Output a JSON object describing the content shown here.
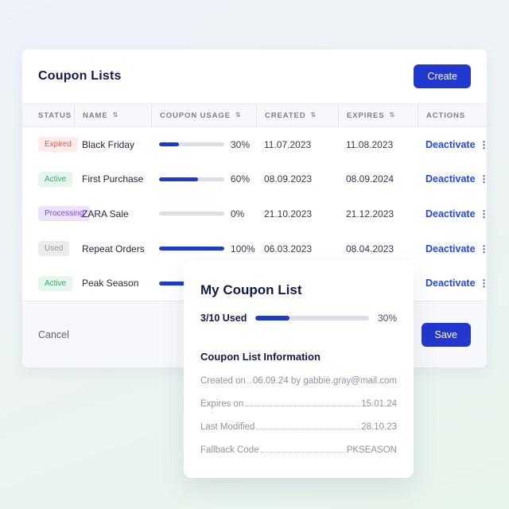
{
  "coupon_lists": {
    "title": "Coupon Lists",
    "create_button": "Create",
    "table": {
      "columns": [
        {
          "label": "STATUS",
          "sortable": false
        },
        {
          "label": "NAME",
          "sortable": true
        },
        {
          "label": "COUPON USAGE",
          "sortable": true
        },
        {
          "label": "CREATED",
          "sortable": true
        },
        {
          "label": "EXPIRES",
          "sortable": true
        },
        {
          "label": "ACTIONS",
          "sortable": false
        }
      ],
      "rows": [
        {
          "status": "Expired",
          "name": "Black Friday",
          "usage_pct": 30,
          "usage_label": "30%",
          "created": "11.07.2023",
          "expires": "11.08.2023",
          "action": "Deactivate"
        },
        {
          "status": "Active",
          "name": "First Purchase",
          "usage_pct": 60,
          "usage_label": "60%",
          "created": "08.09.2023",
          "expires": "08.09.2024",
          "action": "Deactivate"
        },
        {
          "status": "Processing",
          "name": "ZARA Sale",
          "usage_pct": 0,
          "usage_label": "0%",
          "created": "21.10.2023",
          "expires": "21.12.2023",
          "action": "Deactivate"
        },
        {
          "status": "Used",
          "name": "Repeat Orders",
          "usage_pct": 100,
          "usage_label": "100%",
          "created": "06.03.2023",
          "expires": "08.04.2023",
          "action": "Deactivate"
        },
        {
          "status": "Active",
          "name": "Peak Season",
          "usage_pct": 60,
          "usage_label": "",
          "created": "",
          "expires": "",
          "action": "Deactivate"
        }
      ]
    },
    "footer": {
      "cancel_label": "Cancel",
      "save_label": "Save"
    }
  },
  "my_coupon_list": {
    "title": "My Coupon List",
    "usage": {
      "label": "3/10 Used",
      "pct": 30,
      "pct_label": "30%"
    },
    "info": {
      "heading": "Coupon List Information",
      "rows": [
        {
          "label": "Created on",
          "value": "06.09.24 by gabbie.gray@mail.com"
        },
        {
          "label": "Expires on",
          "value": "15.01.24"
        },
        {
          "label": "Last Modified",
          "value": "28.10.23"
        },
        {
          "label": "Fallback Code",
          "value": "PKSEASON"
        }
      ]
    }
  },
  "icons": {
    "sort": "sort-icon",
    "kebab": "kebab-menu-icon"
  },
  "colors": {
    "accent_blue": "#2237cd",
    "link_blue": "#2448e8",
    "progress_fill": "#1d3ccb",
    "progress_track": "#dcdfe8",
    "navy_text": "#0f1b4d",
    "expired_bg": "#fdecea",
    "expired_text": "#e25a51",
    "active_bg": "#e5f7ec",
    "active_text": "#3aa96b",
    "processing_bg": "#ece4fc",
    "processing_text": "#8247f5",
    "used_bg": "#ececec",
    "used_text": "#9a9ba1",
    "background_top": "#eef2f9",
    "background_bottom": "#e7f4ea"
  }
}
